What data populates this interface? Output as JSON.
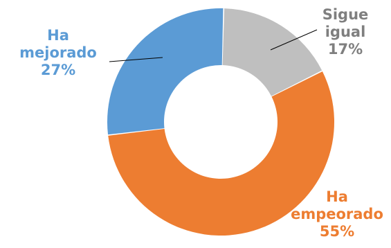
{
  "chart_data": {
    "type": "pie",
    "variant": "donut",
    "title": "",
    "slices": [
      {
        "label": "Sigue igual",
        "lines": [
          "Sigue",
          "igual"
        ],
        "value": 17,
        "value_label": "17%",
        "color": "#BFBFBF"
      },
      {
        "label": "Ha empeorado",
        "lines": [
          "Ha",
          "empeorado"
        ],
        "value": 55,
        "value_label": "55%",
        "color": "#ED7D31"
      },
      {
        "label": "Ha mejorado",
        "lines": [
          "Ha",
          "mejorado"
        ],
        "value": 27,
        "value_label": "27%",
        "color": "#5B9BD5"
      }
    ],
    "label_colors": {
      "Sigue igual": "#7F7F7F",
      "Ha empeorado": "#ED7D31",
      "Ha mejorado": "#5B9BD5"
    },
    "legend": "none"
  }
}
